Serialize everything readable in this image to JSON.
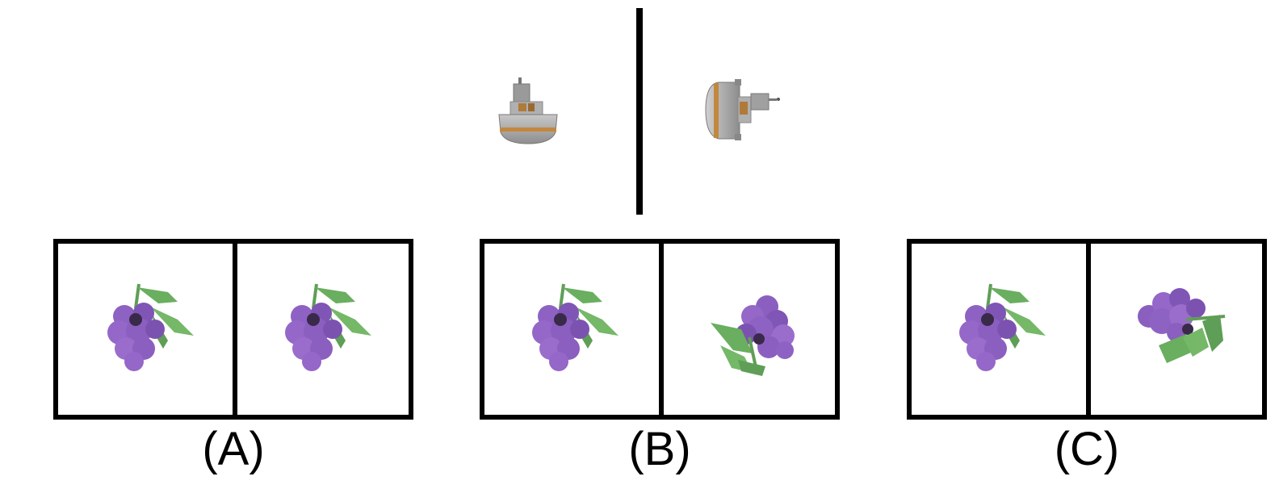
{
  "reference": {
    "left_object_icon": "boat-icon",
    "right_object_icon": "boat-rotated-icon"
  },
  "options": [
    {
      "label": "(A)",
      "left_icon": "grapes-icon",
      "right_icon": "grapes-icon"
    },
    {
      "label": "(B)",
      "left_icon": "grapes-icon",
      "right_icon": "grapes-rotated-icon"
    },
    {
      "label": "(C)",
      "left_icon": "grapes-icon",
      "right_icon": "grapes-rotated-icon"
    }
  ],
  "colors": {
    "grape": "#8b5fbf",
    "grape_dark": "#6f47a3",
    "leaf": "#6aae5f",
    "hull": "#a9a9a9",
    "stripe": "#c2873e",
    "cabin": "#b07a3a"
  }
}
